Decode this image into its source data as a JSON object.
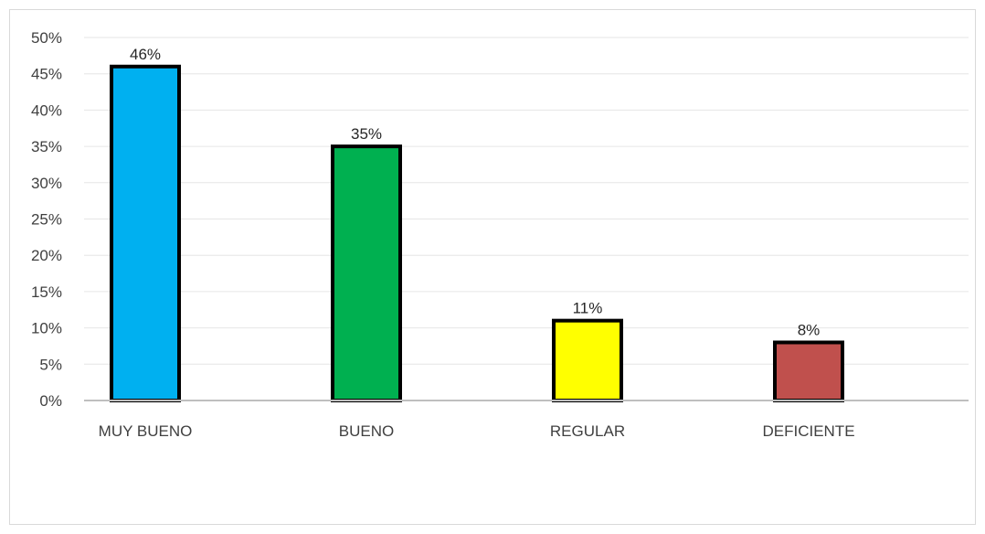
{
  "chart_data": {
    "type": "bar",
    "categories": [
      "MUY BUENO",
      "BUENO",
      "REGULAR",
      "DEFICIENTE"
    ],
    "values": [
      46,
      35,
      11,
      8
    ],
    "data_labels": [
      "46%",
      "35%",
      "11%",
      "8%"
    ],
    "colors": [
      "#00b0f0",
      "#00b050",
      "#ffff00",
      "#c0504d"
    ],
    "bar_outline_color": "#000000",
    "y_ticks": [
      "0%",
      "5%",
      "10%",
      "15%",
      "20%",
      "25%",
      "30%",
      "35%",
      "40%",
      "45%",
      "50%"
    ],
    "ylim": [
      0,
      50
    ],
    "y_unit": "%",
    "grid": true,
    "legend": "none",
    "title": "",
    "xlabel": "",
    "ylabel": ""
  }
}
